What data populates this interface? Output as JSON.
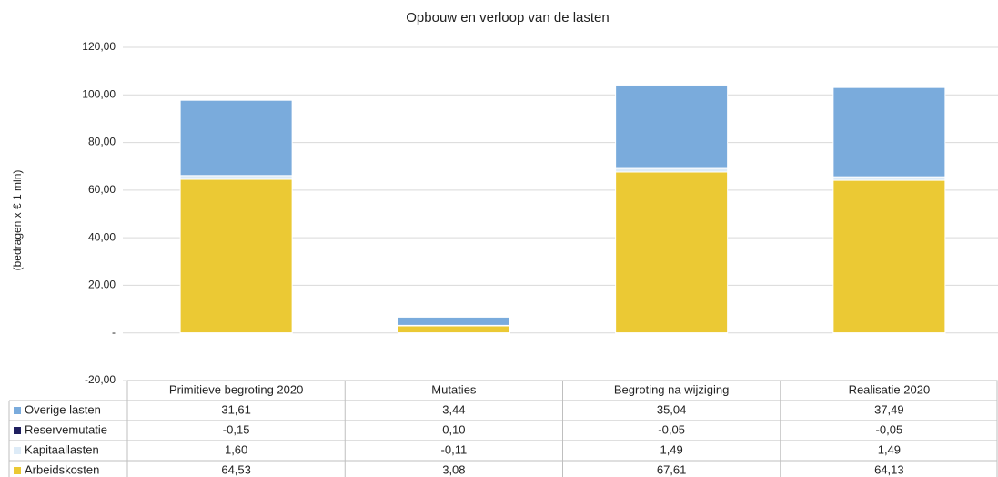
{
  "chart_data": {
    "type": "stacked_bar_table",
    "title": "Opbouw en verloop van de lasten",
    "y_label": "(bedragen x € 1 mln)",
    "categories": [
      "Primitieve begroting 2020",
      "Mutaties",
      "Begroting na wijziging",
      "Realisatie 2020"
    ],
    "series": [
      {
        "name": "Overige lasten",
        "color": "#7aabdc",
        "values": [
          31.61,
          3.44,
          35.04,
          37.49
        ],
        "value_labels": [
          "31,61",
          "3,44",
          "35,04",
          "37,49"
        ]
      },
      {
        "name": "Reservemutatie",
        "color": "#1f1f5f",
        "values": [
          -0.15,
          0.1,
          -0.05,
          -0.05
        ],
        "value_labels": [
          "-0,15",
          "0,10",
          "-0,05",
          "-0,05"
        ]
      },
      {
        "name": "Kapitaallasten",
        "color": "#ddebf7",
        "values": [
          1.6,
          -0.11,
          1.49,
          1.49
        ],
        "value_labels": [
          "1,60",
          "-0,11",
          "1,49",
          "1,49"
        ]
      },
      {
        "name": "Arbeidskosten",
        "color": "#ebc934",
        "values": [
          64.53,
          3.08,
          67.61,
          64.13
        ],
        "value_labels": [
          "64,53",
          "3,08",
          "67,61",
          "64,13"
        ]
      }
    ],
    "ylim": [
      -20,
      120
    ],
    "yticks": [
      {
        "value": -20,
        "label": "-20,00"
      },
      {
        "value": 0,
        "label": "-"
      },
      {
        "value": 20,
        "label": "20,00"
      },
      {
        "value": 40,
        "label": "40,00"
      },
      {
        "value": 60,
        "label": "60,00"
      },
      {
        "value": 80,
        "label": "80,00"
      },
      {
        "value": 100,
        "label": "100,00"
      },
      {
        "value": 120,
        "label": "120,00"
      }
    ],
    "grid": true
  }
}
